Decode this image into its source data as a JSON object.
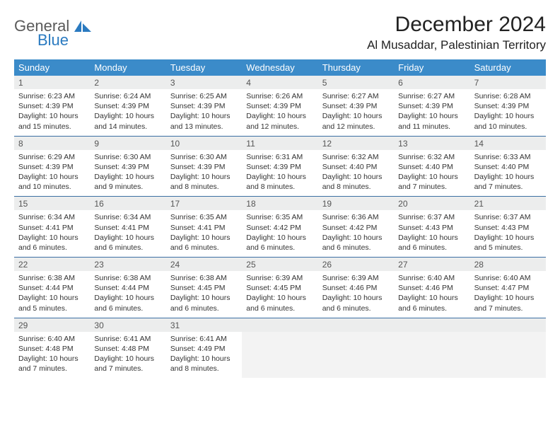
{
  "branding": {
    "text_general": "General",
    "text_blue": "Blue",
    "general_color": "#5a5a5a",
    "blue_color": "#2a7ac0"
  },
  "header": {
    "month_title": "December 2024",
    "location": "Al Musaddar, Palestinian Territory"
  },
  "style": {
    "header_bg": "#3b8bc9",
    "header_text": "#ffffff",
    "daynum_bg": "#eceded",
    "rule_color": "#3b6fa3",
    "body_text": "#333333",
    "empty_bg": "#f3f3f3"
  },
  "day_labels": [
    "Sunday",
    "Monday",
    "Tuesday",
    "Wednesday",
    "Thursday",
    "Friday",
    "Saturday"
  ],
  "weeks": [
    [
      {
        "n": "1",
        "sunrise": "Sunrise: 6:23 AM",
        "sunset": "Sunset: 4:39 PM",
        "d1": "Daylight: 10 hours",
        "d2": "and 15 minutes."
      },
      {
        "n": "2",
        "sunrise": "Sunrise: 6:24 AM",
        "sunset": "Sunset: 4:39 PM",
        "d1": "Daylight: 10 hours",
        "d2": "and 14 minutes."
      },
      {
        "n": "3",
        "sunrise": "Sunrise: 6:25 AM",
        "sunset": "Sunset: 4:39 PM",
        "d1": "Daylight: 10 hours",
        "d2": "and 13 minutes."
      },
      {
        "n": "4",
        "sunrise": "Sunrise: 6:26 AM",
        "sunset": "Sunset: 4:39 PM",
        "d1": "Daylight: 10 hours",
        "d2": "and 12 minutes."
      },
      {
        "n": "5",
        "sunrise": "Sunrise: 6:27 AM",
        "sunset": "Sunset: 4:39 PM",
        "d1": "Daylight: 10 hours",
        "d2": "and 12 minutes."
      },
      {
        "n": "6",
        "sunrise": "Sunrise: 6:27 AM",
        "sunset": "Sunset: 4:39 PM",
        "d1": "Daylight: 10 hours",
        "d2": "and 11 minutes."
      },
      {
        "n": "7",
        "sunrise": "Sunrise: 6:28 AM",
        "sunset": "Sunset: 4:39 PM",
        "d1": "Daylight: 10 hours",
        "d2": "and 10 minutes."
      }
    ],
    [
      {
        "n": "8",
        "sunrise": "Sunrise: 6:29 AM",
        "sunset": "Sunset: 4:39 PM",
        "d1": "Daylight: 10 hours",
        "d2": "and 10 minutes."
      },
      {
        "n": "9",
        "sunrise": "Sunrise: 6:30 AM",
        "sunset": "Sunset: 4:39 PM",
        "d1": "Daylight: 10 hours",
        "d2": "and 9 minutes."
      },
      {
        "n": "10",
        "sunrise": "Sunrise: 6:30 AM",
        "sunset": "Sunset: 4:39 PM",
        "d1": "Daylight: 10 hours",
        "d2": "and 8 minutes."
      },
      {
        "n": "11",
        "sunrise": "Sunrise: 6:31 AM",
        "sunset": "Sunset: 4:39 PM",
        "d1": "Daylight: 10 hours",
        "d2": "and 8 minutes."
      },
      {
        "n": "12",
        "sunrise": "Sunrise: 6:32 AM",
        "sunset": "Sunset: 4:40 PM",
        "d1": "Daylight: 10 hours",
        "d2": "and 8 minutes."
      },
      {
        "n": "13",
        "sunrise": "Sunrise: 6:32 AM",
        "sunset": "Sunset: 4:40 PM",
        "d1": "Daylight: 10 hours",
        "d2": "and 7 minutes."
      },
      {
        "n": "14",
        "sunrise": "Sunrise: 6:33 AM",
        "sunset": "Sunset: 4:40 PM",
        "d1": "Daylight: 10 hours",
        "d2": "and 7 minutes."
      }
    ],
    [
      {
        "n": "15",
        "sunrise": "Sunrise: 6:34 AM",
        "sunset": "Sunset: 4:41 PM",
        "d1": "Daylight: 10 hours",
        "d2": "and 6 minutes."
      },
      {
        "n": "16",
        "sunrise": "Sunrise: 6:34 AM",
        "sunset": "Sunset: 4:41 PM",
        "d1": "Daylight: 10 hours",
        "d2": "and 6 minutes."
      },
      {
        "n": "17",
        "sunrise": "Sunrise: 6:35 AM",
        "sunset": "Sunset: 4:41 PM",
        "d1": "Daylight: 10 hours",
        "d2": "and 6 minutes."
      },
      {
        "n": "18",
        "sunrise": "Sunrise: 6:35 AM",
        "sunset": "Sunset: 4:42 PM",
        "d1": "Daylight: 10 hours",
        "d2": "and 6 minutes."
      },
      {
        "n": "19",
        "sunrise": "Sunrise: 6:36 AM",
        "sunset": "Sunset: 4:42 PM",
        "d1": "Daylight: 10 hours",
        "d2": "and 6 minutes."
      },
      {
        "n": "20",
        "sunrise": "Sunrise: 6:37 AM",
        "sunset": "Sunset: 4:43 PM",
        "d1": "Daylight: 10 hours",
        "d2": "and 6 minutes."
      },
      {
        "n": "21",
        "sunrise": "Sunrise: 6:37 AM",
        "sunset": "Sunset: 4:43 PM",
        "d1": "Daylight: 10 hours",
        "d2": "and 5 minutes."
      }
    ],
    [
      {
        "n": "22",
        "sunrise": "Sunrise: 6:38 AM",
        "sunset": "Sunset: 4:44 PM",
        "d1": "Daylight: 10 hours",
        "d2": "and 5 minutes."
      },
      {
        "n": "23",
        "sunrise": "Sunrise: 6:38 AM",
        "sunset": "Sunset: 4:44 PM",
        "d1": "Daylight: 10 hours",
        "d2": "and 6 minutes."
      },
      {
        "n": "24",
        "sunrise": "Sunrise: 6:38 AM",
        "sunset": "Sunset: 4:45 PM",
        "d1": "Daylight: 10 hours",
        "d2": "and 6 minutes."
      },
      {
        "n": "25",
        "sunrise": "Sunrise: 6:39 AM",
        "sunset": "Sunset: 4:45 PM",
        "d1": "Daylight: 10 hours",
        "d2": "and 6 minutes."
      },
      {
        "n": "26",
        "sunrise": "Sunrise: 6:39 AM",
        "sunset": "Sunset: 4:46 PM",
        "d1": "Daylight: 10 hours",
        "d2": "and 6 minutes."
      },
      {
        "n": "27",
        "sunrise": "Sunrise: 6:40 AM",
        "sunset": "Sunset: 4:46 PM",
        "d1": "Daylight: 10 hours",
        "d2": "and 6 minutes."
      },
      {
        "n": "28",
        "sunrise": "Sunrise: 6:40 AM",
        "sunset": "Sunset: 4:47 PM",
        "d1": "Daylight: 10 hours",
        "d2": "and 7 minutes."
      }
    ],
    [
      {
        "n": "29",
        "sunrise": "Sunrise: 6:40 AM",
        "sunset": "Sunset: 4:48 PM",
        "d1": "Daylight: 10 hours",
        "d2": "and 7 minutes."
      },
      {
        "n": "30",
        "sunrise": "Sunrise: 6:41 AM",
        "sunset": "Sunset: 4:48 PM",
        "d1": "Daylight: 10 hours",
        "d2": "and 7 minutes."
      },
      {
        "n": "31",
        "sunrise": "Sunrise: 6:41 AM",
        "sunset": "Sunset: 4:49 PM",
        "d1": "Daylight: 10 hours",
        "d2": "and 8 minutes."
      },
      {
        "empty": true
      },
      {
        "empty": true
      },
      {
        "empty": true
      },
      {
        "empty": true
      }
    ]
  ]
}
